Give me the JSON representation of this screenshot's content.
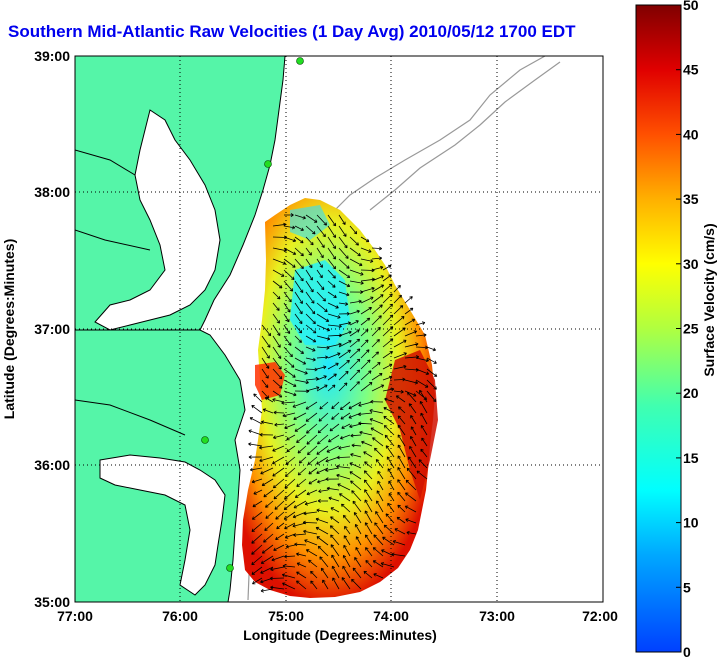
{
  "title": "Southern Mid-Atlantic Raw Velocities (1 Day Avg) 2010/05/12 1700 EDT",
  "map": {
    "xlabel": "Longitude (Degrees:Minutes)",
    "ylabel": "Latitude (Degrees:Minutes)",
    "x_ticks": [
      "77:00",
      "76:00",
      "75:00",
      "74:00",
      "73:00",
      "72:00"
    ],
    "y_ticks": [
      "39:00",
      "38:00",
      "37:00",
      "36:00",
      "35:00"
    ],
    "lon_range": [
      -77,
      -72
    ],
    "lat_range": [
      35,
      39
    ],
    "grid": "dotted",
    "land_color": "#55f5a8",
    "coast_color": "#000000",
    "bathymetry_color": "#999999",
    "station_color": "#22dd22",
    "arrow_color": "#000000"
  },
  "colorbar": {
    "label": "Surface Velocity (cm/s)",
    "ticks": [
      "0",
      "5",
      "10",
      "15",
      "20",
      "25",
      "30",
      "35",
      "40",
      "45",
      "50"
    ],
    "range": [
      0,
      50
    ],
    "colormap": "jet"
  }
}
